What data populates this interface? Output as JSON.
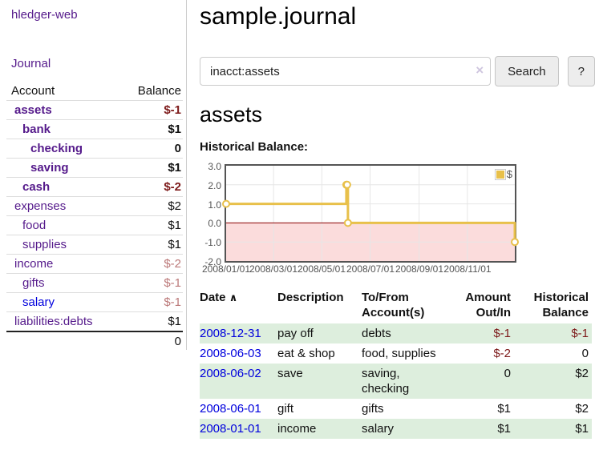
{
  "app": {
    "brand": "hledger-web",
    "nav_journal": "Journal"
  },
  "sidebar": {
    "columns": [
      "Account",
      "Balance"
    ],
    "accounts": [
      {
        "name": "assets",
        "indent": 1,
        "bold": true,
        "balance": "$-1",
        "balance_class": "neg-strong",
        "blue": false
      },
      {
        "name": "bank",
        "indent": 2,
        "bold": true,
        "balance": "$1",
        "balance_class": "",
        "blue": false
      },
      {
        "name": "checking",
        "indent": 3,
        "bold": true,
        "balance": "0",
        "balance_class": "",
        "blue": false
      },
      {
        "name": "saving",
        "indent": 3,
        "bold": true,
        "balance": "$1",
        "balance_class": "",
        "blue": false
      },
      {
        "name": "cash",
        "indent": 2,
        "bold": true,
        "balance": "$-2",
        "balance_class": "neg-strong",
        "blue": false
      },
      {
        "name": "expenses",
        "indent": 1,
        "bold": false,
        "balance": "$2",
        "balance_class": "",
        "blue": false
      },
      {
        "name": "food",
        "indent": 2,
        "bold": false,
        "balance": "$1",
        "balance_class": "",
        "blue": false
      },
      {
        "name": "supplies",
        "indent": 2,
        "bold": false,
        "balance": "$1",
        "balance_class": "",
        "blue": false
      },
      {
        "name": "income",
        "indent": 1,
        "bold": false,
        "balance": "$-2",
        "balance_class": "neg-soft",
        "blue": false
      },
      {
        "name": "gifts",
        "indent": 2,
        "bold": false,
        "balance": "$-1",
        "balance_class": "neg-soft",
        "blue": false
      },
      {
        "name": "salary",
        "indent": 2,
        "bold": false,
        "balance": "$-1",
        "balance_class": "neg-soft",
        "blue": true
      },
      {
        "name": "liabilities:debts",
        "indent": 1,
        "bold": false,
        "balance": "$1",
        "balance_class": "",
        "blue": false
      }
    ],
    "total": "0"
  },
  "header": {
    "title": "sample.journal"
  },
  "search": {
    "value": "inacct:assets",
    "clear_icon": "×",
    "search_label": "Search",
    "help_label": "?"
  },
  "account_page": {
    "title": "assets",
    "chart_label": "Historical Balance:"
  },
  "chart_data": {
    "type": "line",
    "style": "steps",
    "title": "Historical Balance",
    "legend": [
      "$"
    ],
    "legend_position": "top-right",
    "series": [
      {
        "name": "$",
        "color": "#e8c04a",
        "points": [
          {
            "date": "2008/01/01",
            "day": 0,
            "value": 1
          },
          {
            "date": "2008/06/01",
            "day": 152,
            "value": 2
          },
          {
            "date": "2008/06/02",
            "day": 153,
            "value": 2
          },
          {
            "date": "2008/06/03",
            "day": 154,
            "value": 0
          },
          {
            "date": "2008/12/31",
            "day": 365,
            "value": -1
          }
        ]
      }
    ],
    "xlim_days": [
      0,
      365
    ],
    "ylim": [
      -2,
      3
    ],
    "yticks": [
      3.0,
      2.0,
      1.0,
      0.0,
      -1.0,
      -2.0
    ],
    "xticks": [
      {
        "label": "2008/01/01",
        "day": 0
      },
      {
        "label": "2008/03/01",
        "day": 60
      },
      {
        "label": "2008/05/01",
        "day": 121
      },
      {
        "label": "2008/07/01",
        "day": 182
      },
      {
        "label": "2008/09/01",
        "day": 244
      },
      {
        "label": "2008/11/01",
        "day": 305
      }
    ],
    "grid": true,
    "colors": {
      "line": "#e8c04a",
      "marker_fill": "#ffffff",
      "zero_line": "#8b0000",
      "negative_region": "#fbdcdc",
      "gridline": "#e6e6e6",
      "border": "#545454"
    }
  },
  "register": {
    "columns": {
      "date": "Date",
      "sort_icon": "∧",
      "description": "Description",
      "accounts": "To/From Account(s)",
      "amount": "Amount Out/In",
      "balance": "Historical Balance"
    },
    "rows": [
      {
        "date": "2008-12-31",
        "description": "pay off",
        "accounts": "debts",
        "amount": "$-1",
        "amount_neg": true,
        "balance": "$-1",
        "balance_neg": true,
        "striped": true
      },
      {
        "date": "2008-06-03",
        "description": "eat & shop",
        "accounts": "food, supplies",
        "amount": "$-2",
        "amount_neg": true,
        "balance": "0",
        "balance_neg": false,
        "striped": false
      },
      {
        "date": "2008-06-02",
        "description": "save",
        "accounts": "saving, checking",
        "amount": "0",
        "amount_neg": false,
        "balance": "$2",
        "balance_neg": false,
        "striped": true
      },
      {
        "date": "2008-06-01",
        "description": "gift",
        "accounts": "gifts",
        "amount": "$1",
        "amount_neg": false,
        "balance": "$2",
        "balance_neg": false,
        "striped": false
      },
      {
        "date": "2008-01-01",
        "description": "income",
        "accounts": "salary",
        "amount": "$1",
        "amount_neg": false,
        "balance": "$1",
        "balance_neg": false,
        "striped": true
      }
    ]
  }
}
